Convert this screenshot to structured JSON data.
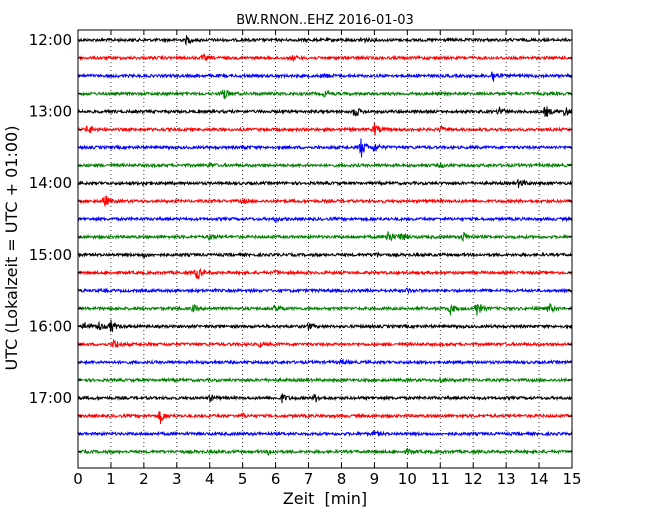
{
  "chart_data": {
    "type": "line",
    "title": "BW.RNON..EHZ 2016-01-03",
    "xlabel": "Zeit  [min]",
    "ylabel": "UTC (Lokalzeit = UTC + 01:00)",
    "xlim": [
      0,
      15
    ],
    "xticks": [
      0,
      1,
      2,
      3,
      4,
      5,
      6,
      7,
      8,
      9,
      10,
      11,
      12,
      13,
      14,
      15
    ],
    "ytick_labels": [
      "12:00",
      "13:00",
      "14:00",
      "15:00",
      "16:00",
      "17:00"
    ],
    "grid": {
      "vertical": true,
      "style": "dotted"
    },
    "color_cycle": [
      "#000000",
      "#ff0000",
      "#0000ff",
      "#008000"
    ],
    "traces": [
      {
        "start": "12:00",
        "events": [
          [
            3.3,
            4
          ],
          [
            8.6,
            3
          ]
        ]
      },
      {
        "start": "12:15",
        "events": [
          [
            3.8,
            3
          ],
          [
            6.5,
            2
          ]
        ]
      },
      {
        "start": "12:30",
        "events": [
          [
            12.6,
            7
          ],
          [
            7.5,
            2
          ]
        ]
      },
      {
        "start": "12:45",
        "events": [
          [
            4.4,
            8
          ],
          [
            7.5,
            3
          ]
        ]
      },
      {
        "start": "13:00",
        "events": [
          [
            8.4,
            6
          ],
          [
            12.8,
            5
          ],
          [
            14.2,
            6
          ],
          [
            14.8,
            5
          ]
        ]
      },
      {
        "start": "13:15",
        "events": [
          [
            0.3,
            5
          ],
          [
            9.0,
            6
          ],
          [
            11.0,
            3
          ]
        ]
      },
      {
        "start": "13:30",
        "events": [
          [
            8.6,
            10
          ],
          [
            9.0,
            5
          ],
          [
            5.0,
            2
          ]
        ]
      },
      {
        "start": "13:45",
        "events": [
          [
            4.0,
            2
          ],
          [
            11.0,
            2
          ]
        ]
      },
      {
        "start": "14:00",
        "events": [
          [
            13.4,
            5
          ],
          [
            2.0,
            2
          ]
        ]
      },
      {
        "start": "14:15",
        "events": [
          [
            0.8,
            7
          ],
          [
            5.0,
            2
          ]
        ]
      },
      {
        "start": "14:30",
        "events": [
          [
            6.0,
            2
          ]
        ]
      },
      {
        "start": "14:45",
        "events": [
          [
            9.4,
            8
          ],
          [
            9.8,
            5
          ],
          [
            11.7,
            5
          ],
          [
            4.0,
            3
          ]
        ]
      },
      {
        "start": "15:00",
        "events": [
          [
            2.0,
            2
          ],
          [
            9.0,
            2
          ]
        ]
      },
      {
        "start": "15:15",
        "events": [
          [
            3.6,
            7
          ],
          [
            6.0,
            2
          ]
        ]
      },
      {
        "start": "15:30",
        "events": [
          [
            10.0,
            2
          ]
        ]
      },
      {
        "start": "15:45",
        "events": [
          [
            6.0,
            4
          ],
          [
            11.3,
            6
          ],
          [
            12.1,
            8
          ],
          [
            14.3,
            5
          ],
          [
            3.5,
            3
          ]
        ]
      },
      {
        "start": "16:00",
        "events": [
          [
            0.6,
            6
          ],
          [
            1.0,
            6
          ],
          [
            0.2,
            4
          ],
          [
            7.0,
            3
          ]
        ]
      },
      {
        "start": "16:15",
        "events": [
          [
            1.1,
            5
          ],
          [
            5.5,
            2
          ]
        ]
      },
      {
        "start": "16:30",
        "events": [
          [
            8.0,
            2
          ]
        ]
      },
      {
        "start": "16:45",
        "events": [
          [
            11.0,
            2
          ]
        ]
      },
      {
        "start": "17:00",
        "events": [
          [
            6.2,
            4
          ],
          [
            7.2,
            4
          ],
          [
            4.0,
            3
          ]
        ]
      },
      {
        "start": "17:15",
        "events": [
          [
            2.5,
            7
          ],
          [
            5.0,
            2
          ]
        ]
      },
      {
        "start": "17:30",
        "events": [
          [
            9.0,
            3
          ]
        ]
      },
      {
        "start": "17:45",
        "events": [
          [
            5.8,
            3
          ],
          [
            10.0,
            2
          ]
        ]
      }
    ]
  }
}
